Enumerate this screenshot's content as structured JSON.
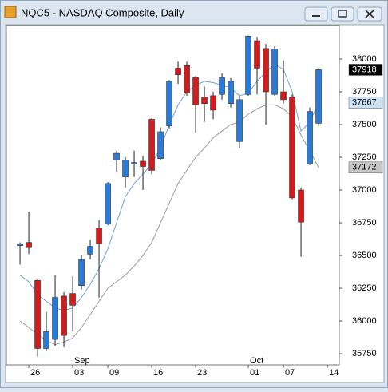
{
  "chart_data": {
    "type": "candlestick",
    "title": "NQC5 - NASDAQ Composite, Daily",
    "x": [
      0,
      1,
      2,
      3,
      4,
      5,
      6,
      7,
      8,
      9,
      10,
      11,
      12,
      13,
      14,
      15,
      16,
      17,
      18,
      19,
      20,
      21,
      22,
      23,
      24,
      25,
      26,
      27,
      28,
      29,
      30,
      31,
      32,
      33,
      34
    ],
    "open": [
      36575,
      36600,
      36310,
      35790,
      35860,
      36190,
      36210,
      36270,
      36510,
      36710,
      36740,
      37230,
      37100,
      37200,
      37220,
      37540,
      37240,
      37490,
      37930,
      37950,
      37860,
      37710,
      37720,
      37730,
      37660,
      37370,
      37730,
      38140,
      38080,
      37730,
      37750,
      37710,
      37000,
      37200,
      37510
    ],
    "high": [
      36600,
      36835,
      36320,
      36070,
      36350,
      36220,
      36340,
      36500,
      36620,
      36770,
      37060,
      37300,
      37250,
      37300,
      37260,
      37550,
      37480,
      37840,
      37980,
      37980,
      37870,
      37790,
      37750,
      37890,
      37855,
      37720,
      38180,
      38170,
      38115,
      38100,
      37990,
      37730,
      37020,
      37630,
      37930
    ],
    "low": [
      36430,
      36510,
      35730,
      35770,
      35810,
      35800,
      35920,
      36240,
      36470,
      36180,
      36730,
      37140,
      37020,
      37100,
      37000,
      37120,
      37230,
      37470,
      37810,
      37720,
      37440,
      37520,
      37540,
      37690,
      37630,
      37320,
      37720,
      37730,
      37500,
      37720,
      37660,
      36930,
      36490,
      37190,
      37490
    ],
    "close": [
      36590,
      36560,
      35790,
      35920,
      36180,
      35890,
      36120,
      36470,
      36570,
      36590,
      37050,
      37280,
      37230,
      37210,
      37180,
      37150,
      37445,
      37830,
      37880,
      37740,
      37650,
      37660,
      37610,
      37860,
      37830,
      37690,
      38175,
      37930,
      37750,
      38075,
      37690,
      36940,
      36755,
      37600,
      37918
    ],
    "up_color": "#2a7ad8",
    "down_color": "#d01c1c",
    "overlays": [
      {
        "color": "#6f9fe0",
        "values": [
          36350,
          36300,
          36200,
          36150,
          36100,
          36080,
          36100,
          36180,
          36280,
          36400,
          36550,
          36750,
          36950,
          37050,
          37120,
          37200,
          37320,
          37500,
          37650,
          37750,
          37800,
          37830,
          37820,
          37800,
          37780,
          37720,
          37740,
          37830,
          37900,
          37960,
          37920,
          37750,
          37450,
          37520,
          37667
        ]
      },
      {
        "color": "#9a9a9a",
        "values": [
          36000,
          35950,
          35900,
          35850,
          35820,
          35840,
          35870,
          35950,
          36050,
          36150,
          36250,
          36300,
          36350,
          36420,
          36500,
          36600,
          36750,
          36900,
          37050,
          37150,
          37250,
          37320,
          37400,
          37450,
          37500,
          37520,
          37580,
          37620,
          37650,
          37650,
          37620,
          37560,
          37420,
          37300,
          37172
        ]
      }
    ],
    "ylim": [
      35665,
      38256
    ],
    "yticks": [
      35750,
      36000,
      36250,
      36500,
      36750,
      37000,
      37250,
      37500,
      37750,
      38000
    ],
    "xlim": [
      -1.55,
      36.36
    ],
    "xticks": [
      {
        "value": 1,
        "label": "26"
      },
      {
        "value": 6,
        "label": "03"
      },
      {
        "value": 10,
        "label": "09"
      },
      {
        "value": 15,
        "label": "16"
      },
      {
        "value": 20,
        "label": "23"
      },
      {
        "value": 26,
        "label": "01"
      },
      {
        "value": 30,
        "label": "07"
      },
      {
        "value": 35,
        "label": "14"
      }
    ],
    "month_labels": [
      {
        "value": 6,
        "label": "Sep"
      },
      {
        "value": 26,
        "label": "Oct"
      }
    ],
    "price_markers": [
      {
        "value": 37918,
        "background": "#000000",
        "text_color": "#ffffff"
      },
      {
        "value": 37667,
        "background": "#cfe3f7",
        "text_color": "#000000"
      },
      {
        "value": 37172,
        "background": "#c8c8c8",
        "text_color": "#000000"
      }
    ],
    "grid": false
  }
}
